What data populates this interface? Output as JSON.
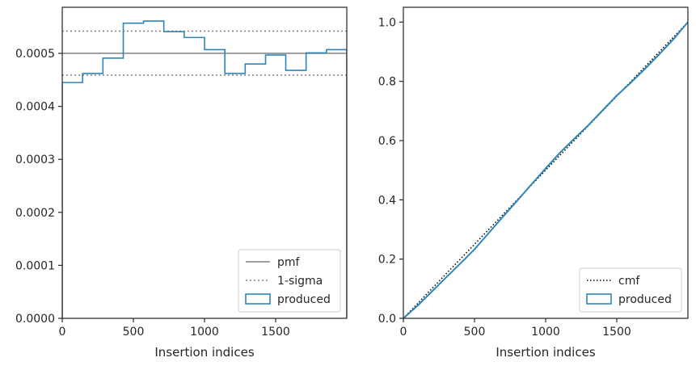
{
  "chart_data": [
    {
      "type": "histogram-step",
      "xlabel": "Insertion indices",
      "ylabel": "",
      "xlim": [
        0,
        2000
      ],
      "ylim": [
        0,
        0.000587
      ],
      "xticks": [
        0,
        500,
        1000,
        1500
      ],
      "xtick_labels": [
        "0",
        "500",
        "1000",
        "1500"
      ],
      "yticks": [
        0,
        0.0001,
        0.0002,
        0.0003,
        0.0004,
        0.0005
      ],
      "ytick_labels": [
        "0.0000",
        "0.0001",
        "0.0002",
        "0.0003",
        "0.0004",
        "0.0005"
      ],
      "grid": false,
      "legend_position": "lower-right",
      "lines": [
        {
          "name": "pmf",
          "y": 0.0005,
          "style": "solid",
          "color": "#808080"
        },
        {
          "name": "1-sigma",
          "y": 0.000542,
          "style": "dotted",
          "color": "#808080"
        },
        {
          "name": "1-sigma",
          "y": 0.000459,
          "style": "dotted",
          "color": "#808080"
        }
      ],
      "series": [
        {
          "name": "produced",
          "color": "#2e86b8",
          "bin_edges": [
            0,
            143,
            286,
            429,
            571,
            714,
            857,
            1000,
            1143,
            1286,
            1429,
            1571,
            1714,
            1857,
            2000
          ],
          "values": [
            0.000445,
            0.000462,
            0.000491,
            0.000557,
            0.000561,
            0.000541,
            0.00053,
            0.000507,
            0.000462,
            0.00048,
            0.000497,
            0.000468,
            0.000501,
            0.000507
          ]
        }
      ],
      "legend": [
        "pmf",
        "1-sigma",
        "produced"
      ]
    },
    {
      "type": "line",
      "xlabel": "Insertion indices",
      "ylabel": "",
      "xlim": [
        0,
        2000
      ],
      "ylim": [
        0,
        1.05
      ],
      "xticks": [
        0,
        500,
        1000,
        1500
      ],
      "xtick_labels": [
        "0",
        "500",
        "1000",
        "1500"
      ],
      "yticks": [
        0,
        0.2,
        0.4,
        0.6,
        0.8,
        1.0
      ],
      "ytick_labels": [
        "0.0",
        "0.2",
        "0.4",
        "0.6",
        "0.8",
        "1.0"
      ],
      "grid": false,
      "legend_position": "lower-right",
      "series": [
        {
          "name": "cmf",
          "style": "dotted",
          "color": "#000000",
          "x": [
            0,
            2000
          ],
          "y": [
            0,
            1.0
          ]
        },
        {
          "name": "produced",
          "style": "solid",
          "color": "#2e86b8",
          "x": [
            0,
            100,
            200,
            300,
            400,
            500,
            600,
            700,
            800,
            900,
            1000,
            1100,
            1200,
            1300,
            1400,
            1500,
            1600,
            1700,
            1800,
            1900,
            2000
          ],
          "y": [
            0,
            0.043,
            0.09,
            0.138,
            0.185,
            0.233,
            0.288,
            0.343,
            0.397,
            0.452,
            0.506,
            0.559,
            0.606,
            0.652,
            0.702,
            0.752,
            0.796,
            0.843,
            0.892,
            0.943,
            1.0
          ]
        }
      ],
      "legend": [
        "cmf",
        "produced"
      ]
    }
  ]
}
